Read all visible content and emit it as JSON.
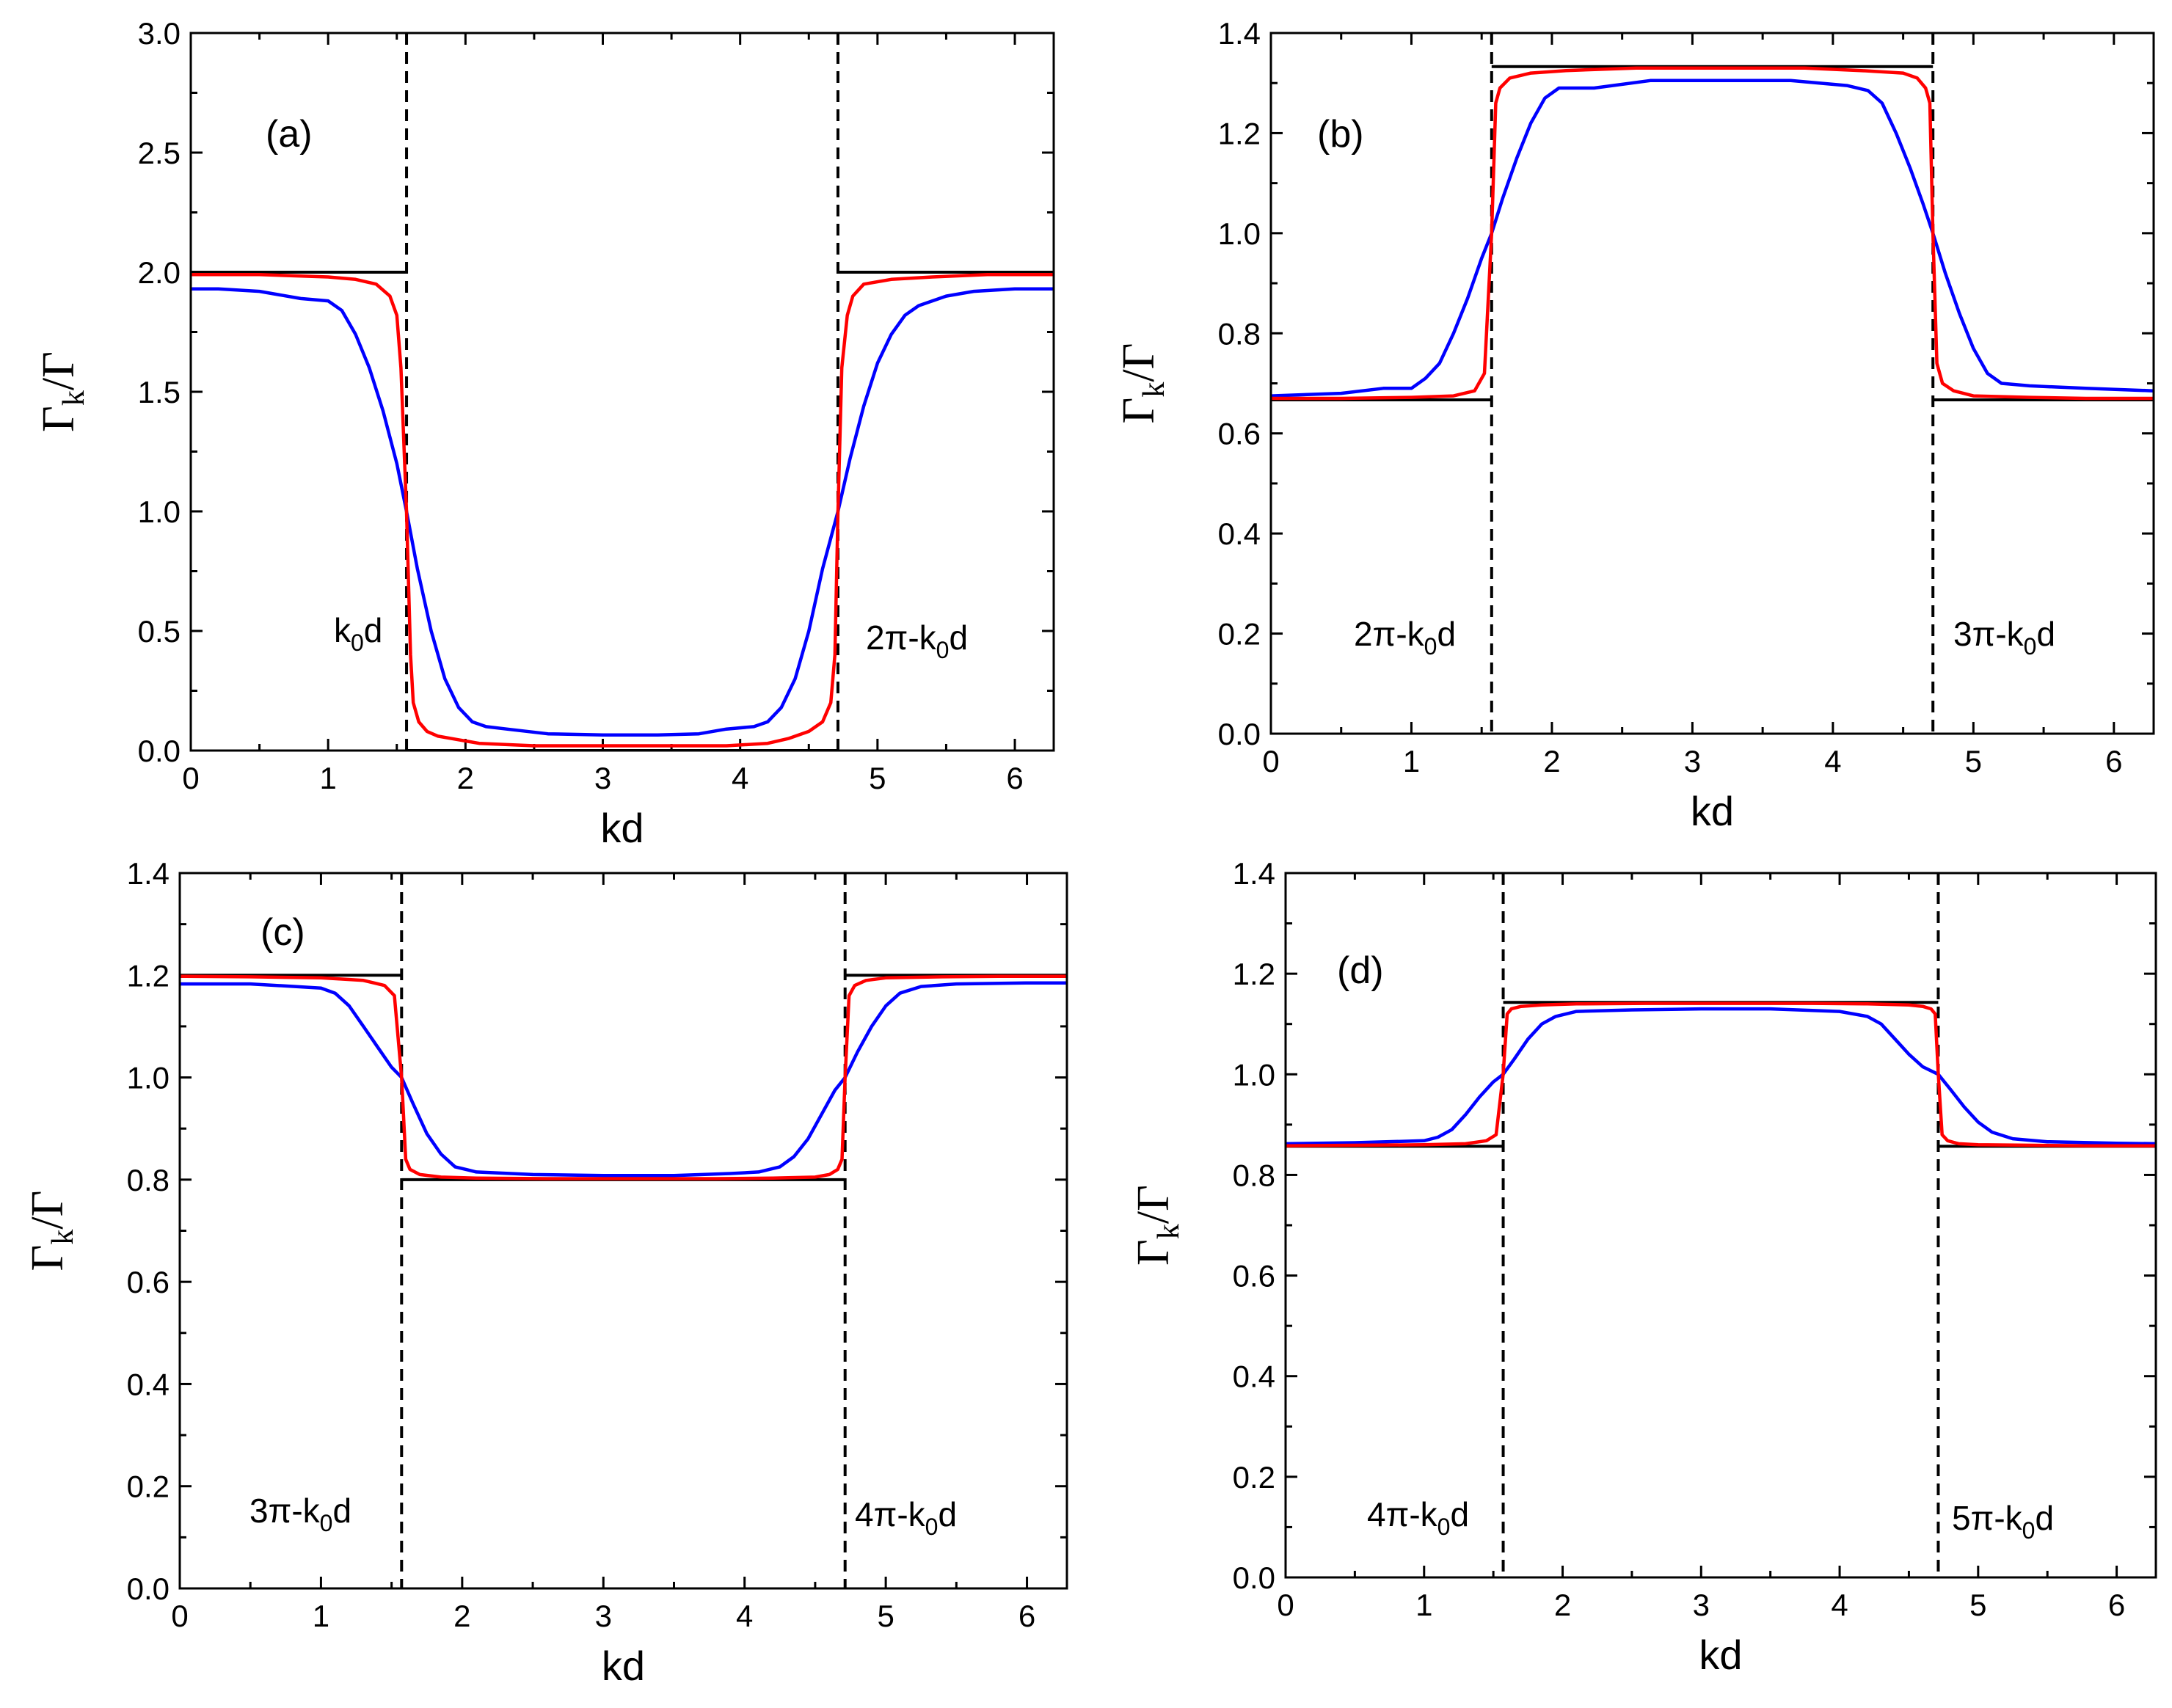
{
  "chart_data": [
    {
      "type": "line",
      "panel_label": "(a)",
      "xlabel": "kd",
      "ylabel": {
        "main": "Γ",
        "sub": "k",
        "tail": "/Γ"
      },
      "xlim": [
        0,
        6.283
      ],
      "ylim": [
        0,
        3.0
      ],
      "xticks": [
        0,
        1,
        2,
        3,
        4,
        5,
        6
      ],
      "xtick_labels": [
        "0",
        "1",
        "2",
        "3",
        "4",
        "5",
        "6"
      ],
      "yticks": [
        0,
        0.5,
        1.0,
        1.5,
        2.0,
        2.5,
        3.0
      ],
      "ytick_labels": [
        "0.0",
        "0.5",
        "1.0",
        "1.5",
        "2.0",
        "2.5",
        "3.0"
      ],
      "vlines": [
        1.571,
        4.712
      ],
      "annotations": [
        {
          "pre": "k",
          "sub": "0",
          "post": "d",
          "x": 1.25,
          "y": 0.5
        },
        {
          "pre": "2π-k",
          "sub": "0",
          "post": "d",
          "x": 5.4,
          "y": 0.5
        }
      ],
      "theory": {
        "outer": 2.0,
        "inner": 0.0
      },
      "series": [
        {
          "name": "blue",
          "color": "#0000ff",
          "x": [
            0,
            0.2,
            0.5,
            0.8,
            1.0,
            1.1,
            1.2,
            1.3,
            1.4,
            1.5,
            1.571,
            1.65,
            1.75,
            1.85,
            1.95,
            2.05,
            2.15,
            2.3,
            2.6,
            3.0,
            3.4,
            3.7,
            3.9,
            4.1,
            4.2,
            4.3,
            4.4,
            4.5,
            4.6,
            4.712,
            4.8,
            4.9,
            5.0,
            5.1,
            5.2,
            5.3,
            5.4,
            5.5,
            5.7,
            6.0,
            6.283
          ],
          "values": [
            1.93,
            1.93,
            1.92,
            1.89,
            1.88,
            1.84,
            1.74,
            1.6,
            1.42,
            1.2,
            1.0,
            0.76,
            0.5,
            0.3,
            0.18,
            0.12,
            0.1,
            0.09,
            0.07,
            0.065,
            0.065,
            0.07,
            0.09,
            0.1,
            0.12,
            0.18,
            0.3,
            0.5,
            0.76,
            1.0,
            1.22,
            1.44,
            1.62,
            1.74,
            1.82,
            1.86,
            1.88,
            1.9,
            1.92,
            1.93,
            1.93
          ]
        },
        {
          "name": "red",
          "color": "#ff0000",
          "x": [
            0,
            0.5,
            1.0,
            1.2,
            1.35,
            1.45,
            1.5,
            1.53,
            1.571,
            1.6,
            1.62,
            1.66,
            1.72,
            1.8,
            1.9,
            2.1,
            2.5,
            3.0,
            3.5,
            3.9,
            4.2,
            4.35,
            4.5,
            4.6,
            4.66,
            4.69,
            4.712,
            4.74,
            4.78,
            4.82,
            4.9,
            5.1,
            5.4,
            5.8,
            6.283
          ],
          "values": [
            1.99,
            1.99,
            1.98,
            1.97,
            1.95,
            1.9,
            1.82,
            1.6,
            1.0,
            0.4,
            0.2,
            0.12,
            0.08,
            0.06,
            0.05,
            0.03,
            0.02,
            0.02,
            0.02,
            0.02,
            0.03,
            0.05,
            0.08,
            0.12,
            0.2,
            0.4,
            1.0,
            1.6,
            1.82,
            1.9,
            1.95,
            1.97,
            1.98,
            1.99,
            1.99
          ]
        }
      ]
    },
    {
      "type": "line",
      "panel_label": "(b)",
      "xlabel": "kd",
      "ylabel": {
        "main": "Γ",
        "sub": "k",
        "tail": "/Γ"
      },
      "xlim": [
        0,
        6.283
      ],
      "ylim": [
        0,
        1.4
      ],
      "xticks": [
        0,
        1,
        2,
        3,
        4,
        5,
        6
      ],
      "xtick_labels": [
        "0",
        "1",
        "2",
        "3",
        "4",
        "5",
        "6"
      ],
      "yticks": [
        0,
        0.2,
        0.4,
        0.6,
        0.8,
        1.0,
        1.2,
        1.4
      ],
      "ytick_labels": [
        "0.0",
        "0.2",
        "0.4",
        "0.6",
        "0.8",
        "1.0",
        "1.2",
        "1.4"
      ],
      "vlines": [
        1.571,
        4.712
      ],
      "annotations": [
        {
          "pre": "2π-k",
          "sub": "0",
          "post": "d",
          "x": 0.75,
          "y": 0.18
        },
        {
          "pre": "3π-k",
          "sub": "0",
          "post": "d",
          "x": 5.5,
          "y": 0.18
        }
      ],
      "theory": {
        "outer": 0.667,
        "inner": 1.333
      },
      "series": [
        {
          "name": "blue",
          "color": "#0000ff",
          "x": [
            0,
            0.5,
            0.8,
            1.0,
            1.1,
            1.2,
            1.3,
            1.4,
            1.5,
            1.571,
            1.65,
            1.75,
            1.85,
            1.95,
            2.05,
            2.3,
            2.7,
            3.2,
            3.7,
            4.1,
            4.25,
            4.35,
            4.45,
            4.55,
            4.64,
            4.712,
            4.8,
            4.9,
            5.0,
            5.1,
            5.2,
            5.4,
            5.8,
            6.283
          ],
          "values": [
            0.675,
            0.68,
            0.69,
            0.69,
            0.71,
            0.74,
            0.8,
            0.87,
            0.95,
            1.0,
            1.07,
            1.15,
            1.22,
            1.27,
            1.29,
            1.29,
            1.305,
            1.305,
            1.305,
            1.295,
            1.285,
            1.26,
            1.2,
            1.13,
            1.06,
            1.0,
            0.92,
            0.84,
            0.77,
            0.72,
            0.7,
            0.695,
            0.69,
            0.685
          ]
        },
        {
          "name": "red",
          "color": "#ff0000",
          "x": [
            0,
            0.5,
            1.0,
            1.3,
            1.45,
            1.52,
            1.571,
            1.6,
            1.63,
            1.7,
            1.85,
            2.1,
            2.6,
            3.2,
            3.8,
            4.2,
            4.5,
            4.6,
            4.66,
            4.69,
            4.712,
            4.74,
            4.78,
            4.86,
            5.0,
            5.4,
            5.8,
            6.283
          ],
          "values": [
            0.67,
            0.67,
            0.672,
            0.675,
            0.685,
            0.72,
            1.0,
            1.26,
            1.29,
            1.31,
            1.32,
            1.325,
            1.33,
            1.33,
            1.33,
            1.325,
            1.32,
            1.31,
            1.29,
            1.26,
            1.0,
            0.74,
            0.7,
            0.685,
            0.675,
            0.672,
            0.67,
            0.67
          ]
        }
      ]
    },
    {
      "type": "line",
      "panel_label": "(c)",
      "xlabel": "kd",
      "ylabel": {
        "main": "Γ",
        "sub": "k",
        "tail": "/Γ"
      },
      "xlim": [
        0,
        6.283
      ],
      "ylim": [
        0,
        1.4
      ],
      "xticks": [
        0,
        1,
        2,
        3,
        4,
        5,
        6
      ],
      "xtick_labels": [
        "0",
        "1",
        "2",
        "3",
        "4",
        "5",
        "6"
      ],
      "yticks": [
        0,
        0.2,
        0.4,
        0.6,
        0.8,
        1.0,
        1.2,
        1.4
      ],
      "ytick_labels": [
        "0.0",
        "0.2",
        "0.4",
        "0.6",
        "0.8",
        "1.0",
        "1.2",
        "1.4"
      ],
      "vlines": [
        1.571,
        4.712
      ],
      "annotations": [
        {
          "pre": "3π-k",
          "sub": "0",
          "post": "d",
          "x": 0.93,
          "y": 0.15
        },
        {
          "pre": "4π-k",
          "sub": "0",
          "post": "d",
          "x": 5.4,
          "y": 0.15
        }
      ],
      "theory": {
        "outer": 1.2,
        "inner": 0.8
      },
      "series": [
        {
          "name": "blue",
          "color": "#0000ff",
          "x": [
            0,
            0.5,
            1.0,
            1.1,
            1.2,
            1.3,
            1.4,
            1.5,
            1.571,
            1.65,
            1.75,
            1.85,
            1.95,
            2.1,
            2.5,
            3.0,
            3.5,
            3.9,
            4.1,
            4.25,
            4.35,
            4.45,
            4.55,
            4.64,
            4.712,
            4.8,
            4.9,
            5.0,
            5.1,
            5.25,
            5.5,
            6.0,
            6.283
          ],
          "values": [
            1.183,
            1.183,
            1.175,
            1.165,
            1.14,
            1.1,
            1.06,
            1.02,
            1.0,
            0.95,
            0.89,
            0.85,
            0.825,
            0.815,
            0.81,
            0.808,
            0.808,
            0.812,
            0.815,
            0.825,
            0.845,
            0.88,
            0.93,
            0.975,
            1.0,
            1.05,
            1.1,
            1.14,
            1.165,
            1.178,
            1.183,
            1.185,
            1.185
          ]
        },
        {
          "name": "red",
          "color": "#ff0000",
          "x": [
            0,
            0.5,
            1.0,
            1.3,
            1.45,
            1.52,
            1.571,
            1.6,
            1.63,
            1.7,
            1.85,
            2.1,
            2.6,
            3.2,
            3.8,
            4.2,
            4.5,
            4.6,
            4.66,
            4.69,
            4.712,
            4.74,
            4.78,
            4.86,
            5.0,
            5.4,
            5.8,
            6.283
          ],
          "values": [
            1.198,
            1.197,
            1.195,
            1.19,
            1.18,
            1.16,
            1.0,
            0.84,
            0.82,
            0.81,
            0.805,
            0.803,
            0.802,
            0.802,
            0.802,
            0.803,
            0.805,
            0.81,
            0.82,
            0.84,
            1.0,
            1.16,
            1.18,
            1.19,
            1.195,
            1.197,
            1.198,
            1.198
          ]
        }
      ]
    },
    {
      "type": "line",
      "panel_label": "(d)",
      "xlabel": "kd",
      "ylabel": {
        "main": "Γ",
        "sub": "k",
        "tail": "/Γ"
      },
      "xlim": [
        0,
        6.283
      ],
      "ylim": [
        0,
        1.4
      ],
      "xticks": [
        0,
        1,
        2,
        3,
        4,
        5,
        6
      ],
      "xtick_labels": [
        "0",
        "1",
        "2",
        "3",
        "4",
        "5",
        "6"
      ],
      "yticks": [
        0,
        0.2,
        0.4,
        0.6,
        0.8,
        1.0,
        1.2,
        1.4
      ],
      "ytick_labels": [
        "0.0",
        "0.2",
        "0.4",
        "0.6",
        "0.8",
        "1.0",
        "1.2",
        "1.4"
      ],
      "vlines": [
        1.571,
        4.712
      ],
      "annotations": [
        {
          "pre": "4π-k",
          "sub": "0",
          "post": "d",
          "x": 0.93,
          "y": 0.12
        },
        {
          "pre": "5π-k",
          "sub": "0",
          "post": "d",
          "x": 5.4,
          "y": 0.12
        }
      ],
      "theory": {
        "outer": 0.857,
        "inner": 1.143
      },
      "series": [
        {
          "name": "blue",
          "color": "#0000ff",
          "x": [
            0,
            0.5,
            1.0,
            1.1,
            1.2,
            1.3,
            1.4,
            1.5,
            1.571,
            1.65,
            1.75,
            1.85,
            1.95,
            2.1,
            2.5,
            3.0,
            3.5,
            4.0,
            4.2,
            4.3,
            4.4,
            4.5,
            4.6,
            4.712,
            4.8,
            4.9,
            5.0,
            5.1,
            5.25,
            5.5,
            6.0,
            6.283
          ],
          "values": [
            0.862,
            0.864,
            0.868,
            0.875,
            0.89,
            0.92,
            0.955,
            0.985,
            1.0,
            1.03,
            1.07,
            1.1,
            1.115,
            1.125,
            1.128,
            1.13,
            1.13,
            1.125,
            1.115,
            1.1,
            1.07,
            1.04,
            1.015,
            1.0,
            0.97,
            0.935,
            0.905,
            0.885,
            0.872,
            0.866,
            0.863,
            0.862
          ]
        },
        {
          "name": "red",
          "color": "#ff0000",
          "x": [
            0,
            0.5,
            1.0,
            1.3,
            1.45,
            1.52,
            1.571,
            1.6,
            1.63,
            1.7,
            1.85,
            2.1,
            2.6,
            3.2,
            3.8,
            4.2,
            4.5,
            4.6,
            4.66,
            4.69,
            4.712,
            4.74,
            4.78,
            4.86,
            5.0,
            5.4,
            5.8,
            6.283
          ],
          "values": [
            0.858,
            0.859,
            0.86,
            0.862,
            0.868,
            0.88,
            1.0,
            1.12,
            1.13,
            1.135,
            1.138,
            1.14,
            1.141,
            1.141,
            1.141,
            1.14,
            1.138,
            1.135,
            1.13,
            1.12,
            1.0,
            0.88,
            0.868,
            0.862,
            0.86,
            0.859,
            0.858,
            0.858
          ]
        }
      ]
    }
  ]
}
